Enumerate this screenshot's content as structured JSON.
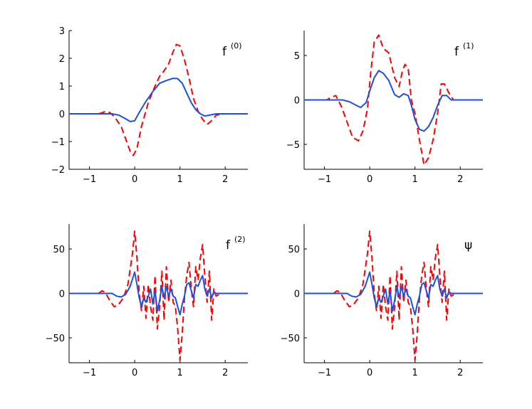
{
  "figure": {
    "background": "#ffffff"
  },
  "chart_data": [
    {
      "type": "line",
      "title": "f",
      "title_superscript": "(0)",
      "xlim": [
        -1.45,
        2.5
      ],
      "ylim": [
        -2,
        3
      ],
      "xticks": [
        -1,
        0,
        1,
        2
      ],
      "yticks": [
        -2,
        -1,
        0,
        1,
        2,
        3
      ],
      "xtick_labels": [
        "−1",
        "0",
        "1",
        "2"
      ],
      "ytick_labels": [
        "−2",
        "−1",
        "0",
        "1",
        "2",
        "3"
      ],
      "grid": false,
      "series": [
        {
          "color": "#ff0000",
          "style": "dashed",
          "x": [
            -1.45,
            -0.9,
            -0.75,
            -0.65,
            -0.55,
            -0.45,
            -0.3,
            -0.2,
            -0.1,
            -0.03,
            0.05,
            0.15,
            0.3,
            0.45,
            0.55,
            0.65,
            0.75,
            0.85,
            0.92,
            1.0,
            1.1,
            1.2,
            1.3,
            1.4,
            1.5,
            1.6,
            1.68,
            1.8,
            2.0,
            2.5
          ],
          "y": [
            0,
            0,
            0.02,
            0.08,
            0.05,
            -0.1,
            -0.45,
            -0.9,
            -1.35,
            -1.5,
            -1.25,
            -0.45,
            0.4,
            1.0,
            1.35,
            1.55,
            1.8,
            2.25,
            2.5,
            2.45,
            1.95,
            1.3,
            0.55,
            0.1,
            -0.2,
            -0.38,
            -0.28,
            -0.05,
            0,
            0
          ]
        },
        {
          "color": "#1f4fe0",
          "style": "solid",
          "x": [
            -1.45,
            -0.5,
            -0.35,
            -0.2,
            -0.1,
            0.0,
            0.1,
            0.25,
            0.4,
            0.55,
            0.7,
            0.85,
            0.95,
            1.05,
            1.15,
            1.25,
            1.35,
            1.45,
            1.55,
            1.65,
            1.8,
            2.5
          ],
          "y": [
            0,
            0,
            -0.05,
            -0.18,
            -0.28,
            -0.25,
            0.05,
            0.45,
            0.8,
            1.1,
            1.2,
            1.28,
            1.27,
            1.1,
            0.75,
            0.4,
            0.15,
            0.0,
            -0.08,
            -0.05,
            0,
            0
          ]
        }
      ]
    },
    {
      "type": "line",
      "title": "f",
      "title_superscript": "(1)",
      "xlim": [
        -1.45,
        2.5
      ],
      "ylim": [
        -7.8,
        7.8
      ],
      "xticks": [
        -1,
        0,
        1,
        2
      ],
      "yticks": [
        -5,
        0,
        5
      ],
      "xtick_labels": [
        "−1",
        "0",
        "1",
        "2"
      ],
      "ytick_labels": [
        "−5",
        "0",
        "5"
      ],
      "grid": false,
      "series": [
        {
          "color": "#ff0000",
          "style": "dashed",
          "x": [
            -1.45,
            -0.95,
            -0.85,
            -0.75,
            -0.62,
            -0.5,
            -0.38,
            -0.25,
            -0.15,
            -0.05,
            0.02,
            0.1,
            0.2,
            0.3,
            0.42,
            0.55,
            0.65,
            0.72,
            0.78,
            0.85,
            0.92,
            1.0,
            1.1,
            1.2,
            1.3,
            1.4,
            1.5,
            1.58,
            1.65,
            1.75,
            1.85,
            2.0,
            2.5
          ],
          "y": [
            0,
            0,
            0.3,
            0.5,
            -0.8,
            -2.5,
            -4.2,
            -4.6,
            -3.5,
            -1,
            3,
            6.5,
            7.3,
            5.8,
            5.3,
            2.5,
            1.5,
            3.2,
            4,
            3.5,
            0,
            -1.5,
            -4.5,
            -7.3,
            -6.5,
            -4.5,
            -1.5,
            1.8,
            1.8,
            0.8,
            0,
            0,
            0
          ]
        },
        {
          "color": "#1f4fe0",
          "style": "solid",
          "x": [
            -1.45,
            -0.6,
            -0.45,
            -0.3,
            -0.2,
            -0.08,
            0.0,
            0.1,
            0.2,
            0.3,
            0.42,
            0.55,
            0.65,
            0.75,
            0.85,
            0.92,
            1.0,
            1.1,
            1.2,
            1.3,
            1.4,
            1.5,
            1.6,
            1.7,
            1.8,
            2.5
          ],
          "y": [
            0,
            0,
            -0.2,
            -0.6,
            -0.85,
            -0.3,
            1.0,
            2.5,
            3.3,
            3.0,
            2.2,
            0.6,
            0.3,
            0.7,
            0.5,
            -0.6,
            -2.2,
            -3.3,
            -3.5,
            -3.0,
            -2.0,
            -0.6,
            0.5,
            0.5,
            0,
            0
          ]
        }
      ]
    },
    {
      "type": "line",
      "title": "f",
      "title_superscript": "(2)",
      "xlim": [
        -1.45,
        2.5
      ],
      "ylim": [
        -78,
        78
      ],
      "xticks": [
        -1,
        0,
        1,
        2
      ],
      "yticks": [
        -50,
        0,
        50
      ],
      "xtick_labels": [
        "−1",
        "0",
        "1",
        "2"
      ],
      "ytick_labels": [
        "−50",
        "0",
        "50"
      ],
      "grid": false,
      "series": [
        {
          "color": "#ff0000",
          "style": "dashed",
          "x": [
            -1.45,
            -0.8,
            -0.72,
            -0.65,
            -0.55,
            -0.45,
            -0.35,
            -0.25,
            -0.15,
            -0.05,
            0.0,
            0.05,
            0.1,
            0.15,
            0.2,
            0.25,
            0.3,
            0.35,
            0.4,
            0.45,
            0.5,
            0.55,
            0.6,
            0.65,
            0.7,
            0.75,
            0.8,
            0.85,
            0.9,
            0.95,
            1.0,
            1.05,
            1.1,
            1.15,
            1.2,
            1.25,
            1.3,
            1.35,
            1.4,
            1.45,
            1.5,
            1.55,
            1.6,
            1.65,
            1.7,
            1.75,
            1.8,
            1.9,
            2.5
          ],
          "y": [
            0,
            0,
            3,
            1,
            -8,
            -15,
            -12,
            -5,
            10,
            45,
            70,
            40,
            0,
            -20,
            8,
            -28,
            10,
            -15,
            -30,
            20,
            -40,
            -15,
            25,
            -30,
            30,
            -10,
            15,
            -10,
            -15,
            -40,
            -75,
            -45,
            -5,
            20,
            35,
            5,
            -15,
            30,
            15,
            40,
            55,
            20,
            -10,
            25,
            -30,
            5,
            -3,
            0,
            0
          ]
        },
        {
          "color": "#1f4fe0",
          "style": "solid",
          "x": [
            -1.45,
            -0.5,
            -0.4,
            -0.3,
            -0.2,
            -0.1,
            0.0,
            0.05,
            0.1,
            0.15,
            0.2,
            0.25,
            0.3,
            0.35,
            0.4,
            0.45,
            0.5,
            0.55,
            0.6,
            0.65,
            0.7,
            0.75,
            0.8,
            0.85,
            0.9,
            0.95,
            1.0,
            1.05,
            1.1,
            1.15,
            1.2,
            1.25,
            1.3,
            1.35,
            1.4,
            1.45,
            1.5,
            1.55,
            1.6,
            1.65,
            1.7,
            1.75,
            1.8,
            2.5
          ],
          "y": [
            0,
            0,
            -3,
            -4,
            -1,
            8,
            24,
            10,
            -5,
            -15,
            -5,
            -10,
            -3,
            5,
            -12,
            3,
            -20,
            -8,
            8,
            -5,
            8,
            -3,
            5,
            -3,
            -5,
            -15,
            -24,
            -12,
            -3,
            10,
            12,
            3,
            -5,
            10,
            8,
            15,
            20,
            5,
            -3,
            5,
            -5,
            2,
            0,
            0
          ]
        }
      ]
    },
    {
      "type": "line",
      "title": "ψ",
      "title_superscript": "",
      "xlim": [
        -1.45,
        2.5
      ],
      "ylim": [
        -78,
        78
      ],
      "xticks": [
        -1,
        0,
        1,
        2
      ],
      "yticks": [
        -50,
        0,
        50
      ],
      "xtick_labels": [
        "−1",
        "0",
        "1",
        "2"
      ],
      "ytick_labels": [
        "−50",
        "0",
        "50"
      ],
      "grid": false,
      "series": [
        {
          "color": "#ff0000",
          "style": "dashed",
          "x": [
            -1.45,
            -0.8,
            -0.72,
            -0.65,
            -0.55,
            -0.45,
            -0.35,
            -0.25,
            -0.15,
            -0.05,
            0.0,
            0.05,
            0.1,
            0.15,
            0.2,
            0.25,
            0.3,
            0.35,
            0.4,
            0.45,
            0.5,
            0.55,
            0.6,
            0.65,
            0.7,
            0.75,
            0.8,
            0.85,
            0.9,
            0.95,
            1.0,
            1.05,
            1.1,
            1.15,
            1.2,
            1.25,
            1.3,
            1.35,
            1.4,
            1.45,
            1.5,
            1.55,
            1.6,
            1.65,
            1.7,
            1.75,
            1.8,
            1.9,
            2.5
          ],
          "y": [
            0,
            0,
            3,
            1,
            -8,
            -15,
            -12,
            -5,
            10,
            45,
            70,
            40,
            0,
            -20,
            8,
            -28,
            10,
            -15,
            -30,
            20,
            -40,
            -15,
            25,
            -30,
            30,
            -10,
            15,
            -10,
            -15,
            -40,
            -75,
            -45,
            -5,
            20,
            35,
            5,
            -15,
            30,
            15,
            40,
            55,
            20,
            -10,
            25,
            -30,
            5,
            -3,
            0,
            0
          ]
        },
        {
          "color": "#1f4fe0",
          "style": "solid",
          "x": [
            -1.45,
            -0.5,
            -0.4,
            -0.3,
            -0.2,
            -0.1,
            0.0,
            0.05,
            0.1,
            0.15,
            0.2,
            0.25,
            0.3,
            0.35,
            0.4,
            0.45,
            0.5,
            0.55,
            0.6,
            0.65,
            0.7,
            0.75,
            0.8,
            0.85,
            0.9,
            0.95,
            1.0,
            1.05,
            1.1,
            1.15,
            1.2,
            1.25,
            1.3,
            1.35,
            1.4,
            1.45,
            1.5,
            1.55,
            1.6,
            1.65,
            1.7,
            1.75,
            1.8,
            2.5
          ],
          "y": [
            0,
            0,
            -3,
            -4,
            -1,
            8,
            24,
            10,
            -5,
            -15,
            -5,
            -10,
            -3,
            5,
            -12,
            3,
            -20,
            -8,
            8,
            -5,
            8,
            -3,
            5,
            -3,
            -5,
            -15,
            -24,
            -12,
            -3,
            10,
            12,
            3,
            -5,
            10,
            8,
            15,
            20,
            5,
            -3,
            5,
            -5,
            2,
            0,
            0
          ]
        }
      ]
    }
  ]
}
